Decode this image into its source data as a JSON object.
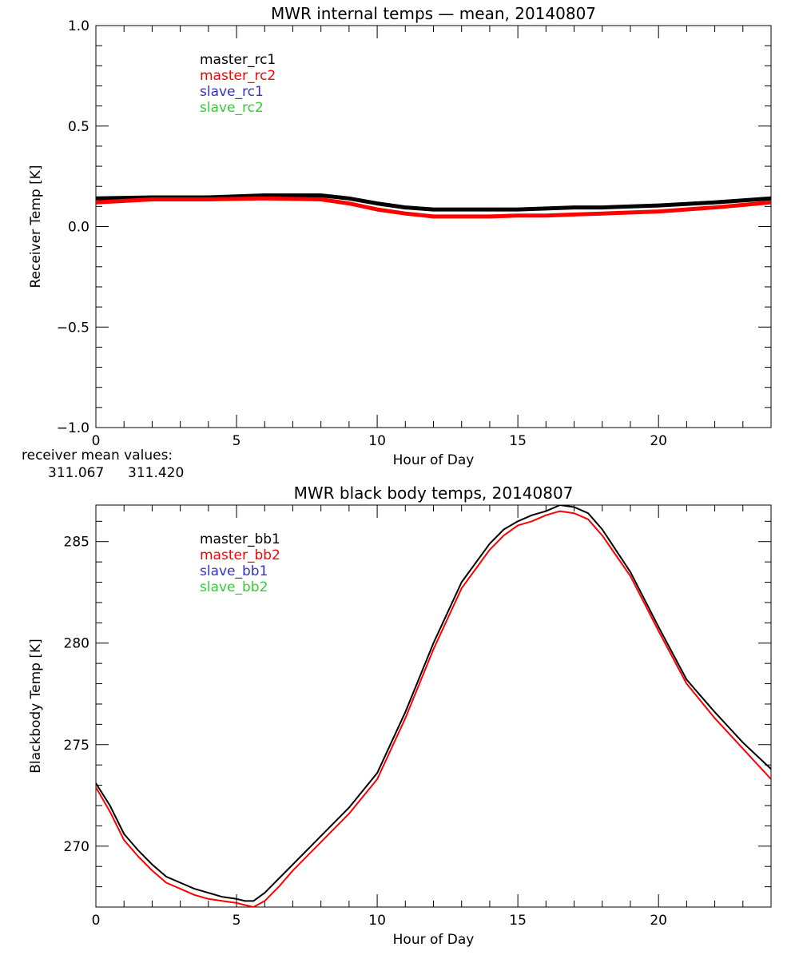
{
  "chart_data": [
    {
      "type": "line",
      "title": "MWR internal temps — mean, 20140807",
      "xlabel": "Hour of Day",
      "ylabel": "Receiver Temp [K]",
      "xlim": [
        0,
        24
      ],
      "ylim": [
        -1.0,
        1.0
      ],
      "xticks": [
        "0",
        "5",
        "10",
        "15",
        "20"
      ],
      "yticks": [
        "−1.0",
        "−0.5",
        "0.0",
        "0.5",
        "1.0"
      ],
      "ytick_values": [
        -1.0,
        -0.5,
        0.0,
        0.5,
        1.0
      ],
      "grid": false,
      "legend_position": "top-left",
      "series": [
        {
          "name": "master_rc1",
          "color": "#000000",
          "x": [
            0,
            2,
            4,
            6,
            8,
            9,
            10,
            11,
            12,
            13,
            14,
            15,
            16,
            17,
            18,
            20,
            22,
            24
          ],
          "y": [
            0.14,
            0.145,
            0.145,
            0.155,
            0.155,
            0.14,
            0.115,
            0.095,
            0.085,
            0.085,
            0.085,
            0.085,
            0.09,
            0.095,
            0.095,
            0.105,
            0.12,
            0.14
          ]
        },
        {
          "name": "master_rc2",
          "color": "#ff0000",
          "x": [
            0,
            2,
            4,
            6,
            8,
            9,
            10,
            11,
            12,
            13,
            14,
            15,
            16,
            17,
            18,
            20,
            22,
            24
          ],
          "y": [
            0.12,
            0.135,
            0.135,
            0.14,
            0.135,
            0.115,
            0.085,
            0.065,
            0.05,
            0.05,
            0.05,
            0.055,
            0.055,
            0.06,
            0.065,
            0.075,
            0.095,
            0.12
          ]
        },
        {
          "name": "slave_rc1",
          "color": "#3333cc",
          "x": [],
          "y": []
        },
        {
          "name": "slave_rc2",
          "color": "#33cc33",
          "x": [],
          "y": []
        }
      ],
      "annotation": {
        "label": "receiver mean values:",
        "values": [
          "311.067",
          "311.420"
        ],
        "colors": [
          "#000000",
          "#ff0000"
        ]
      }
    },
    {
      "type": "line",
      "title": "MWR black body temps, 20140807",
      "xlabel": "Hour of Day",
      "ylabel": "Blackbody Temp [K]",
      "xlim": [
        0,
        24
      ],
      "ylim": [
        267,
        286.8
      ],
      "xticks": [
        "0",
        "5",
        "10",
        "15",
        "20"
      ],
      "yticks": [
        "270",
        "275",
        "280",
        "285"
      ],
      "ytick_values": [
        270,
        275,
        280,
        285
      ],
      "grid": false,
      "legend_position": "top-left",
      "series": [
        {
          "name": "master_bb1",
          "color": "#000000",
          "x": [
            0,
            0.5,
            1,
            1.5,
            2,
            2.5,
            3,
            3.5,
            4,
            4.5,
            5,
            5.3,
            5.6,
            6,
            6.5,
            7,
            8,
            9,
            10,
            11,
            12,
            13,
            14,
            14.5,
            15,
            15.5,
            16,
            16.5,
            17,
            17.5,
            18,
            19,
            20,
            21,
            22,
            23,
            24
          ],
          "y": [
            273.1,
            272.0,
            270.6,
            269.8,
            269.1,
            268.5,
            268.2,
            267.9,
            267.7,
            267.5,
            267.4,
            267.3,
            267.3,
            267.7,
            268.4,
            269.1,
            270.5,
            271.9,
            273.6,
            276.6,
            280.0,
            283.0,
            284.9,
            285.6,
            286.0,
            286.3,
            286.5,
            286.8,
            286.7,
            286.4,
            285.6,
            283.5,
            280.8,
            278.2,
            276.6,
            275.1,
            273.8
          ]
        },
        {
          "name": "master_bb2",
          "color": "#ff0000",
          "x": [
            0,
            0.5,
            1,
            1.5,
            2,
            2.5,
            3,
            3.5,
            4,
            4.5,
            5,
            5.3,
            5.6,
            6,
            6.5,
            7,
            8,
            9,
            10,
            11,
            12,
            13,
            14,
            14.5,
            15,
            15.5,
            16,
            16.5,
            17,
            17.5,
            18,
            19,
            20,
            21,
            22,
            23,
            24
          ],
          "y": [
            272.9,
            271.7,
            270.3,
            269.5,
            268.8,
            268.2,
            267.9,
            267.6,
            267.4,
            267.3,
            267.2,
            267.1,
            267.0,
            267.3,
            268.0,
            268.8,
            270.2,
            271.6,
            273.3,
            276.3,
            279.7,
            282.7,
            284.6,
            285.3,
            285.8,
            286.0,
            286.3,
            286.5,
            286.4,
            286.1,
            285.3,
            283.3,
            280.6,
            278.0,
            276.3,
            274.8,
            273.3
          ]
        },
        {
          "name": "slave_bb1",
          "color": "#3333cc",
          "x": [],
          "y": []
        },
        {
          "name": "slave_bb2",
          "color": "#33cc33",
          "x": [],
          "y": []
        }
      ]
    }
  ]
}
